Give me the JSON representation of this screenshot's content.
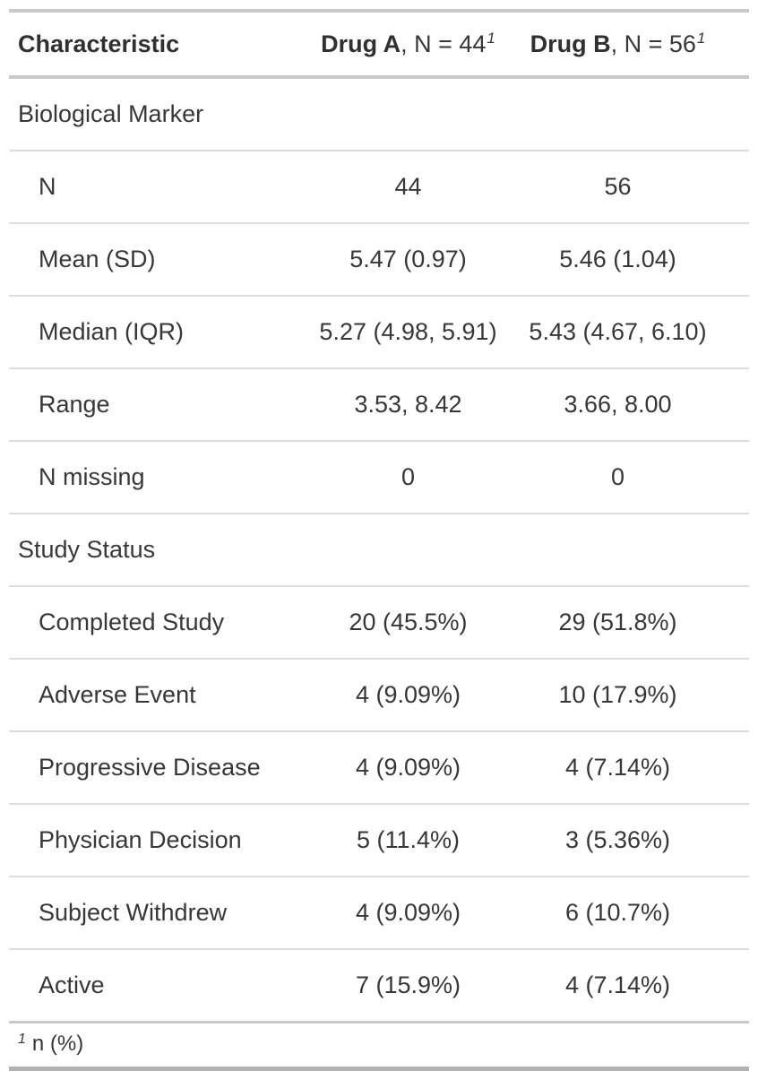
{
  "chart_data": {
    "type": "table",
    "header": {
      "characteristic": "Characteristic",
      "columns": [
        {
          "name": "Drug A",
          "n_label": ", N = 44",
          "footnote_mark": "1"
        },
        {
          "name": "Drug B",
          "n_label": ", N = 56",
          "footnote_mark": "1"
        }
      ]
    },
    "rows": [
      {
        "type": "group",
        "label": "Biological Marker",
        "drug_a": "",
        "drug_b": ""
      },
      {
        "type": "value",
        "label": "N",
        "drug_a": "44",
        "drug_b": "56"
      },
      {
        "type": "value",
        "label": "Mean (SD)",
        "drug_a": "5.47 (0.97)",
        "drug_b": "5.46 (1.04)"
      },
      {
        "type": "value",
        "label": "Median (IQR)",
        "drug_a": "5.27 (4.98, 5.91)",
        "drug_b": "5.43 (4.67, 6.10)"
      },
      {
        "type": "value",
        "label": "Range",
        "drug_a": "3.53, 8.42",
        "drug_b": "3.66, 8.00"
      },
      {
        "type": "value",
        "label": "N missing",
        "drug_a": "0",
        "drug_b": "0"
      },
      {
        "type": "group",
        "label": "Study Status",
        "drug_a": "",
        "drug_b": ""
      },
      {
        "type": "value",
        "label": "Completed Study",
        "drug_a": "20 (45.5%)",
        "drug_b": "29 (51.8%)"
      },
      {
        "type": "value",
        "label": "Adverse Event",
        "drug_a": "4 (9.09%)",
        "drug_b": "10 (17.9%)"
      },
      {
        "type": "value",
        "label": "Progressive Disease",
        "drug_a": "4 (9.09%)",
        "drug_b": "4 (7.14%)"
      },
      {
        "type": "value",
        "label": "Physician Decision",
        "drug_a": "5 (11.4%)",
        "drug_b": "3 (5.36%)"
      },
      {
        "type": "value",
        "label": "Subject Withdrew",
        "drug_a": "4 (9.09%)",
        "drug_b": "6 (10.7%)"
      },
      {
        "type": "value",
        "label": "Active",
        "drug_a": "7 (15.9%)",
        "drug_b": "4 (7.14%)"
      }
    ],
    "footnote": {
      "mark": "1",
      "text": "n (%)"
    }
  }
}
